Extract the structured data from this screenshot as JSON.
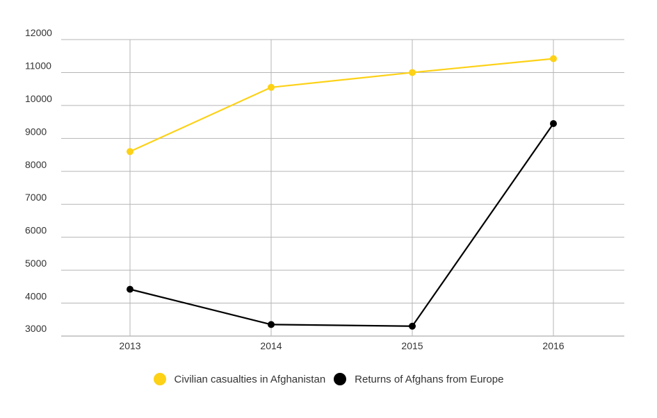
{
  "chart_data": {
    "type": "line",
    "title": "",
    "xlabel": "",
    "ylabel": "",
    "categories": [
      "2013",
      "2014",
      "2015",
      "2016"
    ],
    "y_ticks": [
      "3000",
      "4000",
      "5000",
      "6000",
      "7000",
      "8000",
      "9000",
      "10000",
      "11000",
      "12000"
    ],
    "ylim": [
      3000,
      12000
    ],
    "grid": true,
    "legend_position": "bottom-center",
    "series": [
      {
        "name": "Civilian casualties in Afghanistan",
        "color": "#FDD116",
        "values": [
          8600,
          10550,
          11000,
          11420
        ]
      },
      {
        "name": "Returns of Afghans from Europe",
        "color": "#000000",
        "values": [
          4420,
          3350,
          3300,
          9450
        ]
      }
    ]
  }
}
